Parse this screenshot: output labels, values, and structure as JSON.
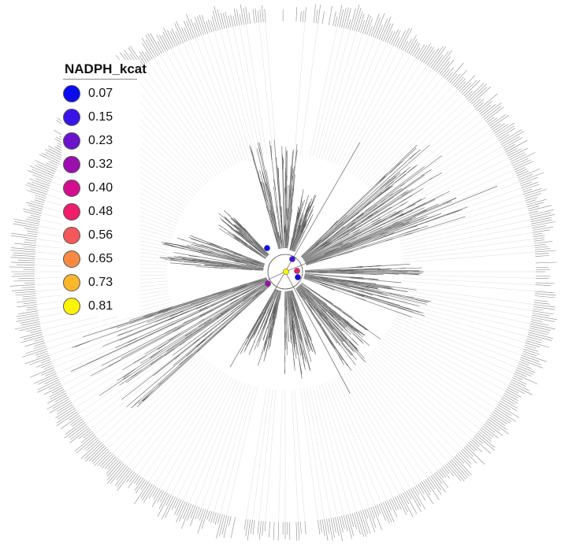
{
  "legend": {
    "title": "NADPH_kcat",
    "items": [
      {
        "label": "0.07",
        "color": "#0b0bf0"
      },
      {
        "label": "0.15",
        "color": "#3a14e6"
      },
      {
        "label": "0.23",
        "color": "#6a12cc"
      },
      {
        "label": "0.32",
        "color": "#9b0fae"
      },
      {
        "label": "0.40",
        "color": "#d20e8e"
      },
      {
        "label": "0.48",
        "color": "#f01c6c"
      },
      {
        "label": "0.56",
        "color": "#f5585a"
      },
      {
        "label": "0.65",
        "color": "#f78a40"
      },
      {
        "label": "0.73",
        "color": "#fbb62a"
      },
      {
        "label": "0.81",
        "color": "#fcf400"
      }
    ]
  },
  "tree": {
    "layout": "circular",
    "branch_color": "#8c8c8c",
    "leader_color": "#d0d0d0",
    "node_markers": [
      {
        "value": "0.07",
        "color": "#0b0bf0"
      },
      {
        "value": "0.07",
        "color": "#0b0bf0"
      },
      {
        "value": "0.15",
        "color": "#3a14e6"
      },
      {
        "value": "0.48",
        "color": "#f01c6c"
      },
      {
        "value": "0.32",
        "color": "#9b0fae"
      },
      {
        "value": "0.81",
        "color": "#fcf400"
      }
    ]
  }
}
